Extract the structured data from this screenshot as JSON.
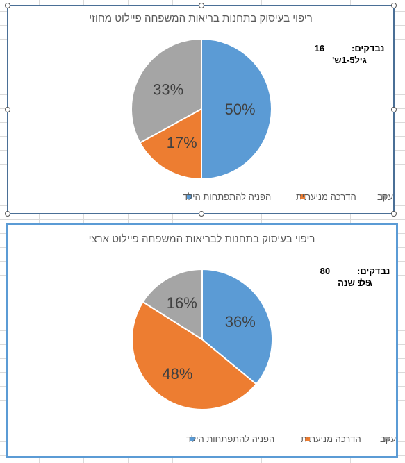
{
  "colors": {
    "blue": "#5b9bd5",
    "orange": "#ed7d31",
    "gray": "#a5a5a5",
    "title": "#595959",
    "label": "#404040"
  },
  "chart_data": [
    {
      "type": "pie",
      "title": "ריפוי בעיסוק בתחנות בריאות המשפחה פיילוט מחוזי",
      "info": [
        {
          "label": "נבדקים:",
          "value": "16"
        },
        {
          "label": "גיל:",
          "value": "1-5ש'"
        }
      ],
      "legend_position": "bottom",
      "categories": [
        "הפניה להתפתחות הילד",
        "הדרכה מניעתית",
        "שוחררו ממעקב"
      ],
      "values": [
        50,
        17,
        33
      ],
      "data_labels": [
        "50%",
        "17%",
        "33%"
      ],
      "colors": [
        "#5b9bd5",
        "#ed7d31",
        "#a5a5a5"
      ]
    },
    {
      "type": "pie",
      "title": "ריפוי בעיסוק בתחנות לבריאות המשפחה פיילוט ארצי",
      "info": [
        {
          "label": "נבדקים:",
          "value": "80"
        },
        {
          "label": "גיל:",
          "value": "1-5 שנה"
        }
      ],
      "legend_position": "bottom",
      "categories": [
        "הפניה להתפתחות הילד",
        "הדרכה מניעתית",
        "שוחררו ממעקב"
      ],
      "values": [
        36,
        48,
        16
      ],
      "data_labels": [
        "36%",
        "48%",
        "16%"
      ],
      "colors": [
        "#5b9bd5",
        "#ed7d31",
        "#a5a5a5"
      ]
    }
  ]
}
